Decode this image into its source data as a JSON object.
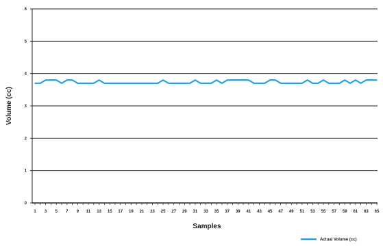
{
  "chart_data": {
    "type": "line",
    "title": "",
    "xlabel": "Samples",
    "ylabel": "Volume (cc)",
    "ylim": [
      0,
      6
    ],
    "yticks": [
      "0",
      "1",
      "2",
      "3",
      "4",
      "5",
      "6"
    ],
    "xticks": [
      "1",
      "3",
      "5",
      "7",
      "9",
      "11",
      "13",
      "15",
      "17",
      "19",
      "21",
      "23",
      "25",
      "27",
      "29",
      "31",
      "33",
      "35",
      "37",
      "39",
      "41",
      "43",
      "45",
      "47",
      "49",
      "51",
      "53",
      "55",
      "57",
      "59",
      "61",
      "63",
      "65"
    ],
    "xlim": [
      1,
      65
    ],
    "grid": "horizontal",
    "legend_position": "bottom-right",
    "series": [
      {
        "name": "Actual Volume (cc)",
        "color": "#29a3dc",
        "x": [
          1,
          2,
          3,
          4,
          5,
          6,
          7,
          8,
          9,
          10,
          11,
          12,
          13,
          14,
          15,
          16,
          17,
          18,
          19,
          20,
          21,
          22,
          23,
          24,
          25,
          26,
          27,
          28,
          29,
          30,
          31,
          32,
          33,
          34,
          35,
          36,
          37,
          38,
          39,
          40,
          41,
          42,
          43,
          44,
          45,
          46,
          47,
          48,
          49,
          50,
          51,
          52,
          53,
          54,
          55,
          56,
          57,
          58,
          59,
          60,
          61,
          62,
          63,
          64,
          65
        ],
        "values": [
          3.7,
          3.7,
          3.8,
          3.8,
          3.8,
          3.7,
          3.8,
          3.8,
          3.7,
          3.7,
          3.7,
          3.7,
          3.8,
          3.7,
          3.7,
          3.7,
          3.7,
          3.7,
          3.7,
          3.7,
          3.7,
          3.7,
          3.7,
          3.7,
          3.8,
          3.7,
          3.7,
          3.7,
          3.7,
          3.7,
          3.8,
          3.7,
          3.7,
          3.7,
          3.8,
          3.7,
          3.8,
          3.8,
          3.8,
          3.8,
          3.8,
          3.7,
          3.7,
          3.7,
          3.8,
          3.8,
          3.7,
          3.7,
          3.7,
          3.7,
          3.7,
          3.8,
          3.7,
          3.7,
          3.8,
          3.7,
          3.7,
          3.7,
          3.8,
          3.7,
          3.8,
          3.7,
          3.8,
          3.8,
          3.8
        ]
      }
    ]
  }
}
